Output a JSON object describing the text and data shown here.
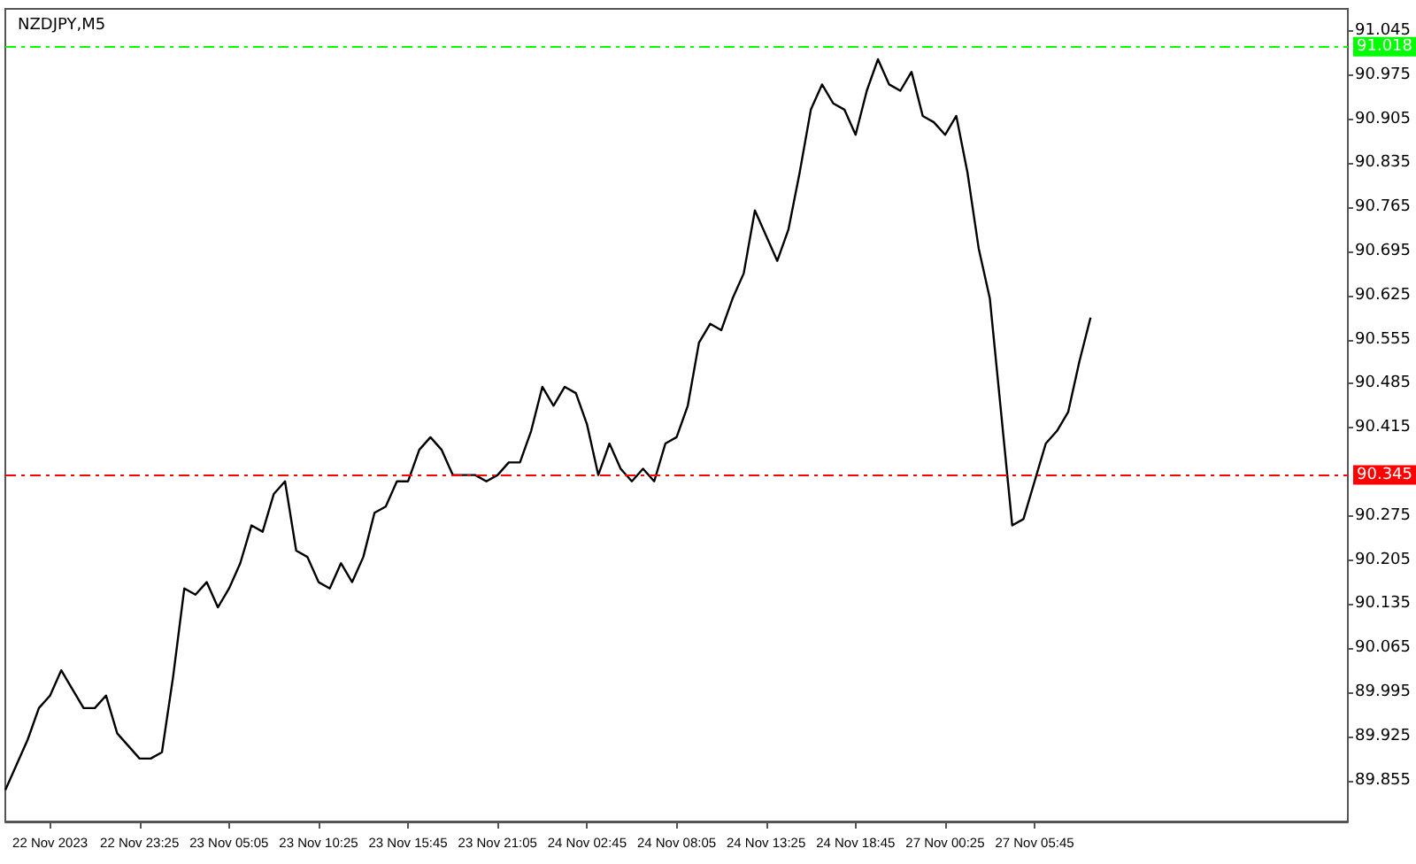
{
  "chart_data": {
    "type": "line",
    "title": "NZDJPY,M5",
    "categories": [
      null,
      null,
      null,
      null,
      "22 Nov 2023",
      null,
      null,
      null,
      null,
      null,
      null,
      null,
      "22 Nov 23:25",
      null,
      null,
      null,
      null,
      null,
      null,
      null,
      "23 Nov 05:05",
      null,
      null,
      null,
      null,
      null,
      null,
      null,
      "23 Nov 10:25",
      null,
      null,
      null,
      null,
      null,
      null,
      null,
      "23 Nov 15:45",
      null,
      null,
      null,
      null,
      null,
      null,
      null,
      "23 Nov 21:05",
      null,
      null,
      null,
      null,
      null,
      null,
      null,
      "24 Nov 02:45",
      null,
      null,
      null,
      null,
      null,
      null,
      null,
      "24 Nov 08:05",
      null,
      null,
      null,
      null,
      null,
      null,
      null,
      "24 Nov 13:25",
      null,
      null,
      null,
      null,
      null,
      null,
      null,
      "24 Nov 18:45",
      null,
      null,
      null,
      null,
      null,
      null,
      null,
      "27 Nov 00:25",
      null,
      null,
      null,
      null,
      null,
      null,
      null,
      "27 Nov 05:45",
      null,
      null,
      null,
      null,
      null,
      null,
      null,
      null,
      null,
      null,
      null,
      null,
      null,
      null,
      null,
      null,
      null,
      null,
      null,
      null,
      null,
      null,
      null,
      null,
      null,
      null,
      null,
      null
    ],
    "series": [
      {
        "color": "#000000",
        "values": [
          89.84,
          89.88,
          89.92,
          89.97,
          89.99,
          90.03,
          90.0,
          89.97,
          89.97,
          89.99,
          89.93,
          89.91,
          89.89,
          89.89,
          89.9,
          90.02,
          90.16,
          90.15,
          90.17,
          90.13,
          90.16,
          90.2,
          90.26,
          90.25,
          90.31,
          90.33,
          90.22,
          90.21,
          90.17,
          90.16,
          90.2,
          90.17,
          90.21,
          90.28,
          90.29,
          90.33,
          90.33,
          90.38,
          90.4,
          90.38,
          90.34,
          90.34,
          90.34,
          90.33,
          90.34,
          90.36,
          90.36,
          90.41,
          90.48,
          90.45,
          90.48,
          90.47,
          90.42,
          90.34,
          90.39,
          90.35,
          90.33,
          90.35,
          90.33,
          90.39,
          90.4,
          90.45,
          90.55,
          90.58,
          90.57,
          90.62,
          90.66,
          90.76,
          90.72,
          90.68,
          90.73,
          90.82,
          90.92,
          90.96,
          90.93,
          90.92,
          90.88,
          90.95,
          91.0,
          90.96,
          90.95,
          90.98,
          90.91,
          90.9,
          90.88,
          90.91,
          90.82,
          90.7,
          90.62,
          90.44,
          90.26,
          90.27,
          90.33,
          90.39,
          90.41,
          90.44,
          90.52,
          90.59,
          null,
          null,
          null,
          null,
          null,
          null,
          null,
          null,
          null,
          null,
          null,
          null,
          null,
          null,
          null,
          null,
          null,
          null,
          null,
          null,
          null,
          null,
          null
        ]
      }
    ],
    "ylim": [
      89.79,
      91.08
    ],
    "yticks": [
      89.855,
      89.925,
      89.995,
      90.065,
      90.135,
      90.205,
      90.275,
      90.415,
      90.485,
      90.555,
      90.625,
      90.695,
      90.765,
      90.835,
      90.905,
      90.975,
      91.045
    ],
    "ref_lines": [
      {
        "axis": "y",
        "value": 91.018,
        "label": "91.018",
        "color": "#00ff00",
        "line_style": "dashed"
      },
      {
        "axis": "y",
        "value": 90.345,
        "label": "90.345",
        "color": "#ff0000",
        "line_style": "dashed"
      }
    ],
    "grid": false,
    "marker": "none"
  }
}
